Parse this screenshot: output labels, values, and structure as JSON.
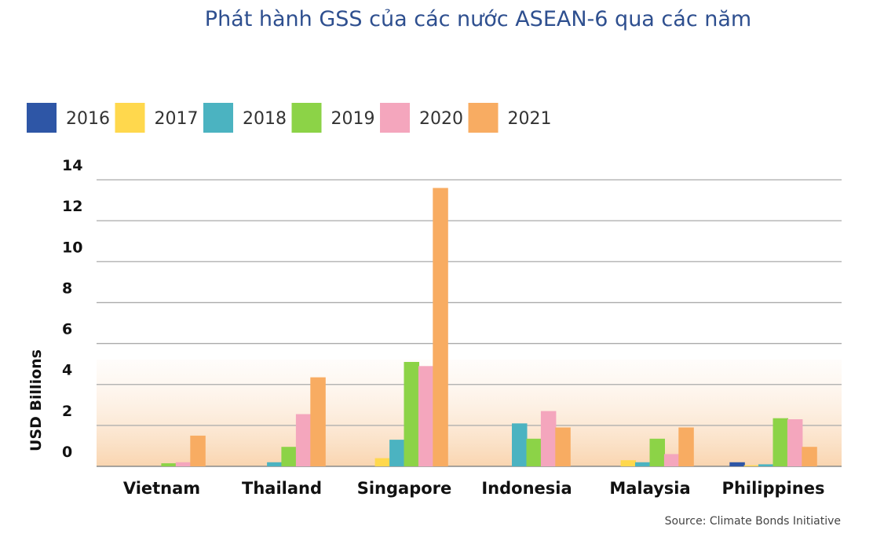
{
  "chart_data": {
    "type": "bar",
    "title": "Phát hành GSS của các nước ASEAN-6 qua các năm",
    "ylabel": "USD Billions",
    "xlabel": "",
    "source": "Source: Climate Bonds Initiative",
    "ylim": [
      0,
      14
    ],
    "yticks": [
      0,
      2,
      4,
      6,
      8,
      10,
      12,
      14
    ],
    "grid": true,
    "legend_position": "top-left",
    "categories": [
      "Vietnam",
      "Thailand",
      "Singapore",
      "Indonesia",
      "Malaysia",
      "Philippines"
    ],
    "series": [
      {
        "name": "2016",
        "color": "#2e56a6",
        "values": [
          0,
          0,
          0,
          0,
          0,
          0.2
        ]
      },
      {
        "name": "2017",
        "color": "#ffd84d",
        "values": [
          0,
          0,
          0.4,
          0,
          0.3,
          0.05
        ]
      },
      {
        "name": "2018",
        "color": "#4bb3c1",
        "values": [
          0,
          0.2,
          1.3,
          2.1,
          0.2,
          0.1
        ]
      },
      {
        "name": "2019",
        "color": "#8cd347",
        "values": [
          0.15,
          0.95,
          5.1,
          1.35,
          1.35,
          2.35
        ]
      },
      {
        "name": "2020",
        "color": "#f4a6bd",
        "values": [
          0.2,
          2.55,
          4.9,
          2.7,
          0.6,
          2.3
        ]
      },
      {
        "name": "2021",
        "color": "#f8ac62",
        "values": [
          1.5,
          4.35,
          13.6,
          1.9,
          1.9,
          0.95
        ]
      }
    ]
  }
}
